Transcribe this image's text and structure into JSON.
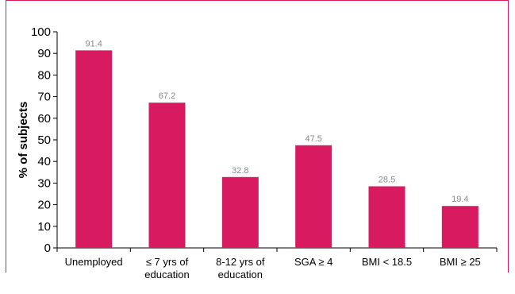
{
  "chart_data": {
    "type": "bar",
    "categories": [
      [
        "Unemployed"
      ],
      [
        "≤ 7 yrs of",
        "education"
      ],
      [
        "8-12 yrs of",
        "education"
      ],
      [
        "SGA ≥ 4"
      ],
      [
        "BMI < 18.5"
      ],
      [
        "BMI ≥ 25"
      ]
    ],
    "values": [
      91.4,
      67.2,
      32.8,
      47.5,
      28.5,
      19.4
    ],
    "data_labels": [
      "91.4",
      "67.2",
      "32.8",
      "47.5",
      "28.5",
      "19.4"
    ],
    "ylabel": "% of subjects",
    "ylim": [
      0,
      100
    ],
    "yticks": [
      0,
      10,
      20,
      30,
      40,
      50,
      60,
      70,
      80,
      90,
      100
    ],
    "grid": false,
    "bar_color": "#d81b60",
    "frame_color": "#d81b60"
  }
}
